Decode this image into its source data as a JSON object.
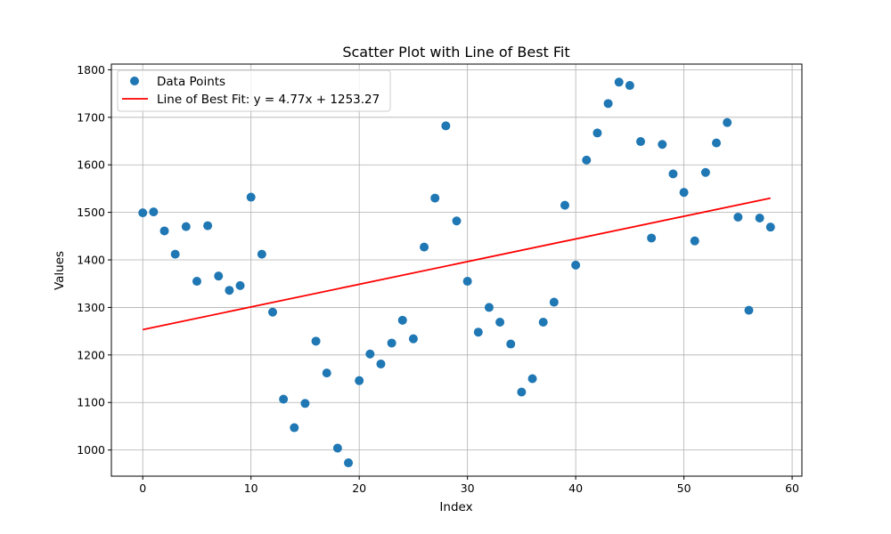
{
  "chart_data": {
    "type": "scatter",
    "title": "Scatter Plot with Line of Best Fit",
    "xlabel": "Index",
    "ylabel": "Values",
    "xlim": [
      -2.9,
      60.9
    ],
    "ylim": [
      945,
      1812
    ],
    "xticks": [
      0,
      10,
      20,
      30,
      40,
      50,
      60
    ],
    "yticks": [
      1000,
      1100,
      1200,
      1300,
      1400,
      1500,
      1600,
      1700,
      1800
    ],
    "grid": true,
    "legend_position": "top-left",
    "series": [
      {
        "name": "Data Points",
        "type": "scatter",
        "color": "#1f77b4",
        "x": [
          0,
          1,
          2,
          3,
          4,
          5,
          6,
          7,
          8,
          9,
          10,
          11,
          12,
          13,
          14,
          15,
          16,
          17,
          18,
          19,
          20,
          21,
          22,
          23,
          24,
          25,
          26,
          27,
          28,
          29,
          30,
          31,
          32,
          33,
          34,
          35,
          36,
          37,
          38,
          39,
          40,
          41,
          42,
          43,
          44,
          45,
          46,
          47,
          48,
          49,
          50,
          51,
          52,
          53,
          54,
          55,
          56,
          57,
          58
        ],
        "y": [
          1499,
          1501,
          1461,
          1412,
          1470,
          1355,
          1472,
          1366,
          1336,
          1346,
          1532,
          1412,
          1290,
          1107,
          1047,
          1098,
          1229,
          1162,
          1004,
          973,
          1146,
          1202,
          1181,
          1225,
          1273,
          1234,
          1427,
          1530,
          1682,
          1482,
          1355,
          1248,
          1300,
          1269,
          1223,
          1122,
          1150,
          1269,
          1311,
          1515,
          1389,
          1610,
          1667,
          1729,
          1774,
          1767,
          1649,
          1446,
          1643,
          1581,
          1542,
          1440,
          1584,
          1646,
          1689,
          1490,
          1294,
          1488,
          1469
        ]
      },
      {
        "name": "Line of Best Fit: y = 4.77x + 1253.27",
        "type": "line",
        "color": "#ff0000",
        "x": [
          0,
          58
        ],
        "y": [
          1253.27,
          1529.93
        ]
      }
    ]
  }
}
